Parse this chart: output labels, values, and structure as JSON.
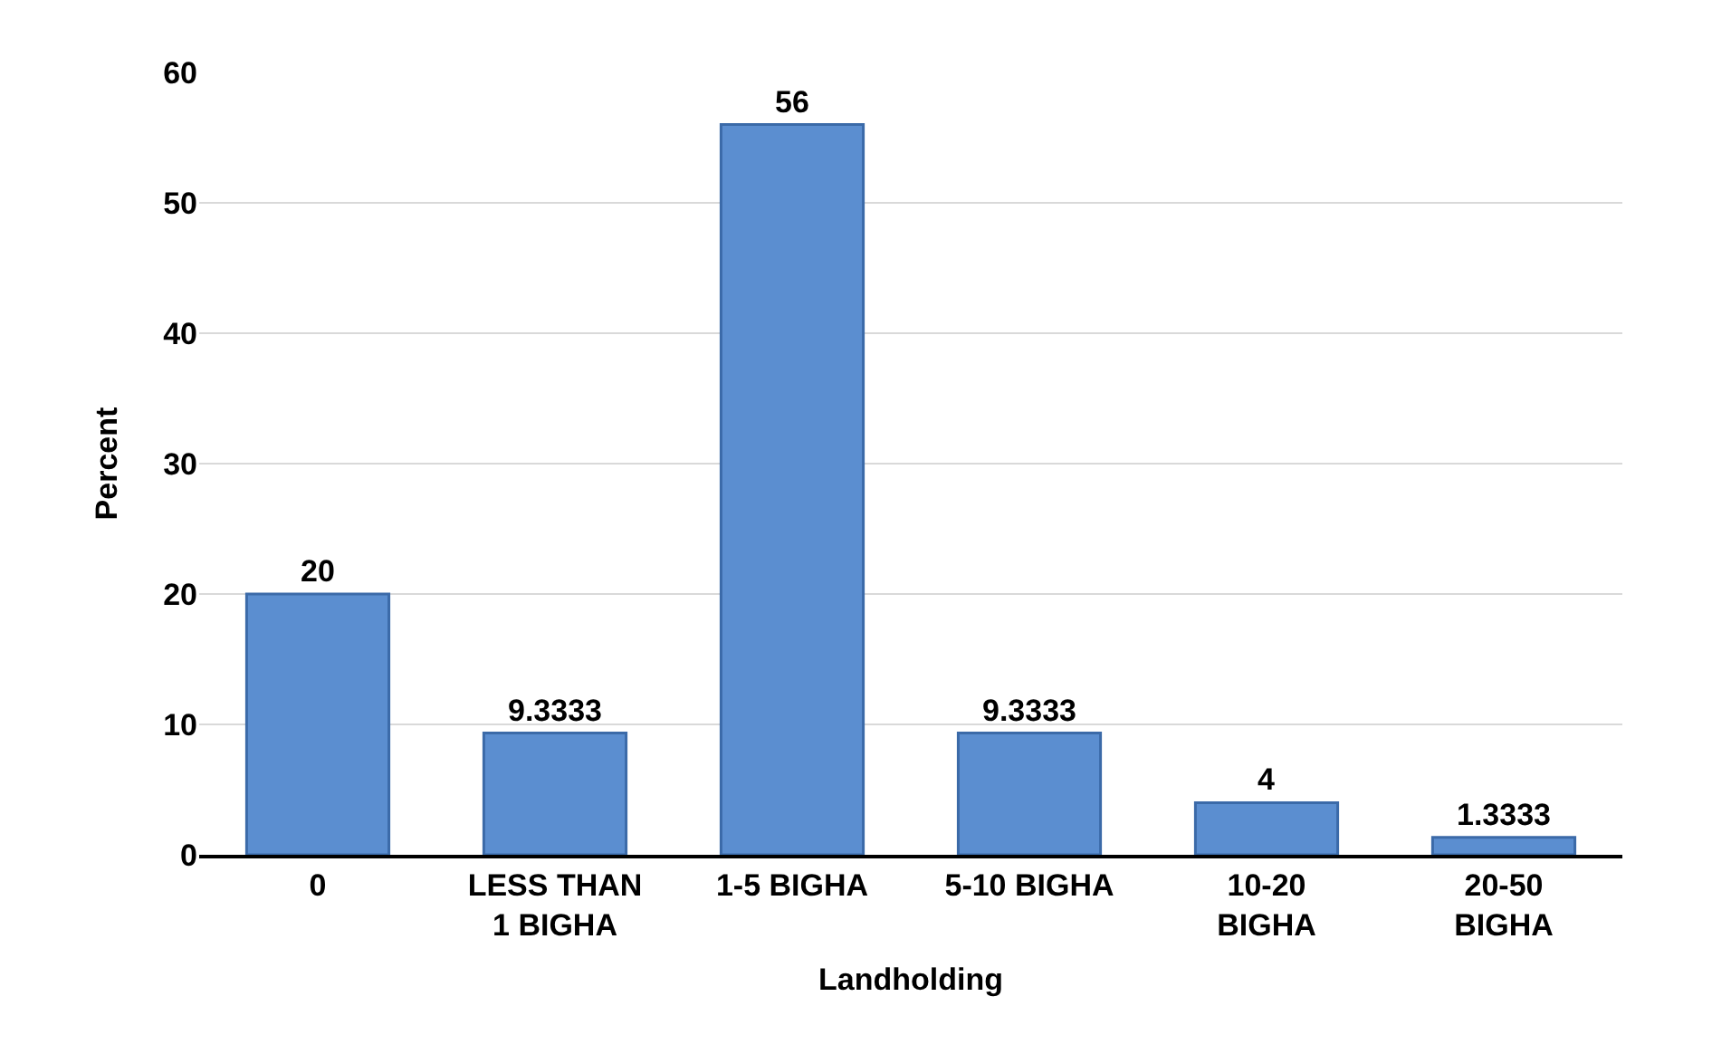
{
  "chart_data": {
    "type": "bar",
    "categories": [
      "0",
      "LESS THAN 1 BIGHA",
      "1-5 BIGHA",
      "5-10 BIGHA",
      "10-20 BIGHA",
      "20-50 BIGHA"
    ],
    "values": [
      20,
      9.3333,
      56,
      9.3333,
      4,
      1.3333
    ],
    "color": "#5b8ed0",
    "xlabel": "Landholding",
    "ylabel": "Percent",
    "ylim": [
      0,
      60
    ],
    "yticks": [
      0,
      10,
      20,
      30,
      40,
      50,
      60
    ],
    "grid": "y",
    "data_labels": true
  }
}
